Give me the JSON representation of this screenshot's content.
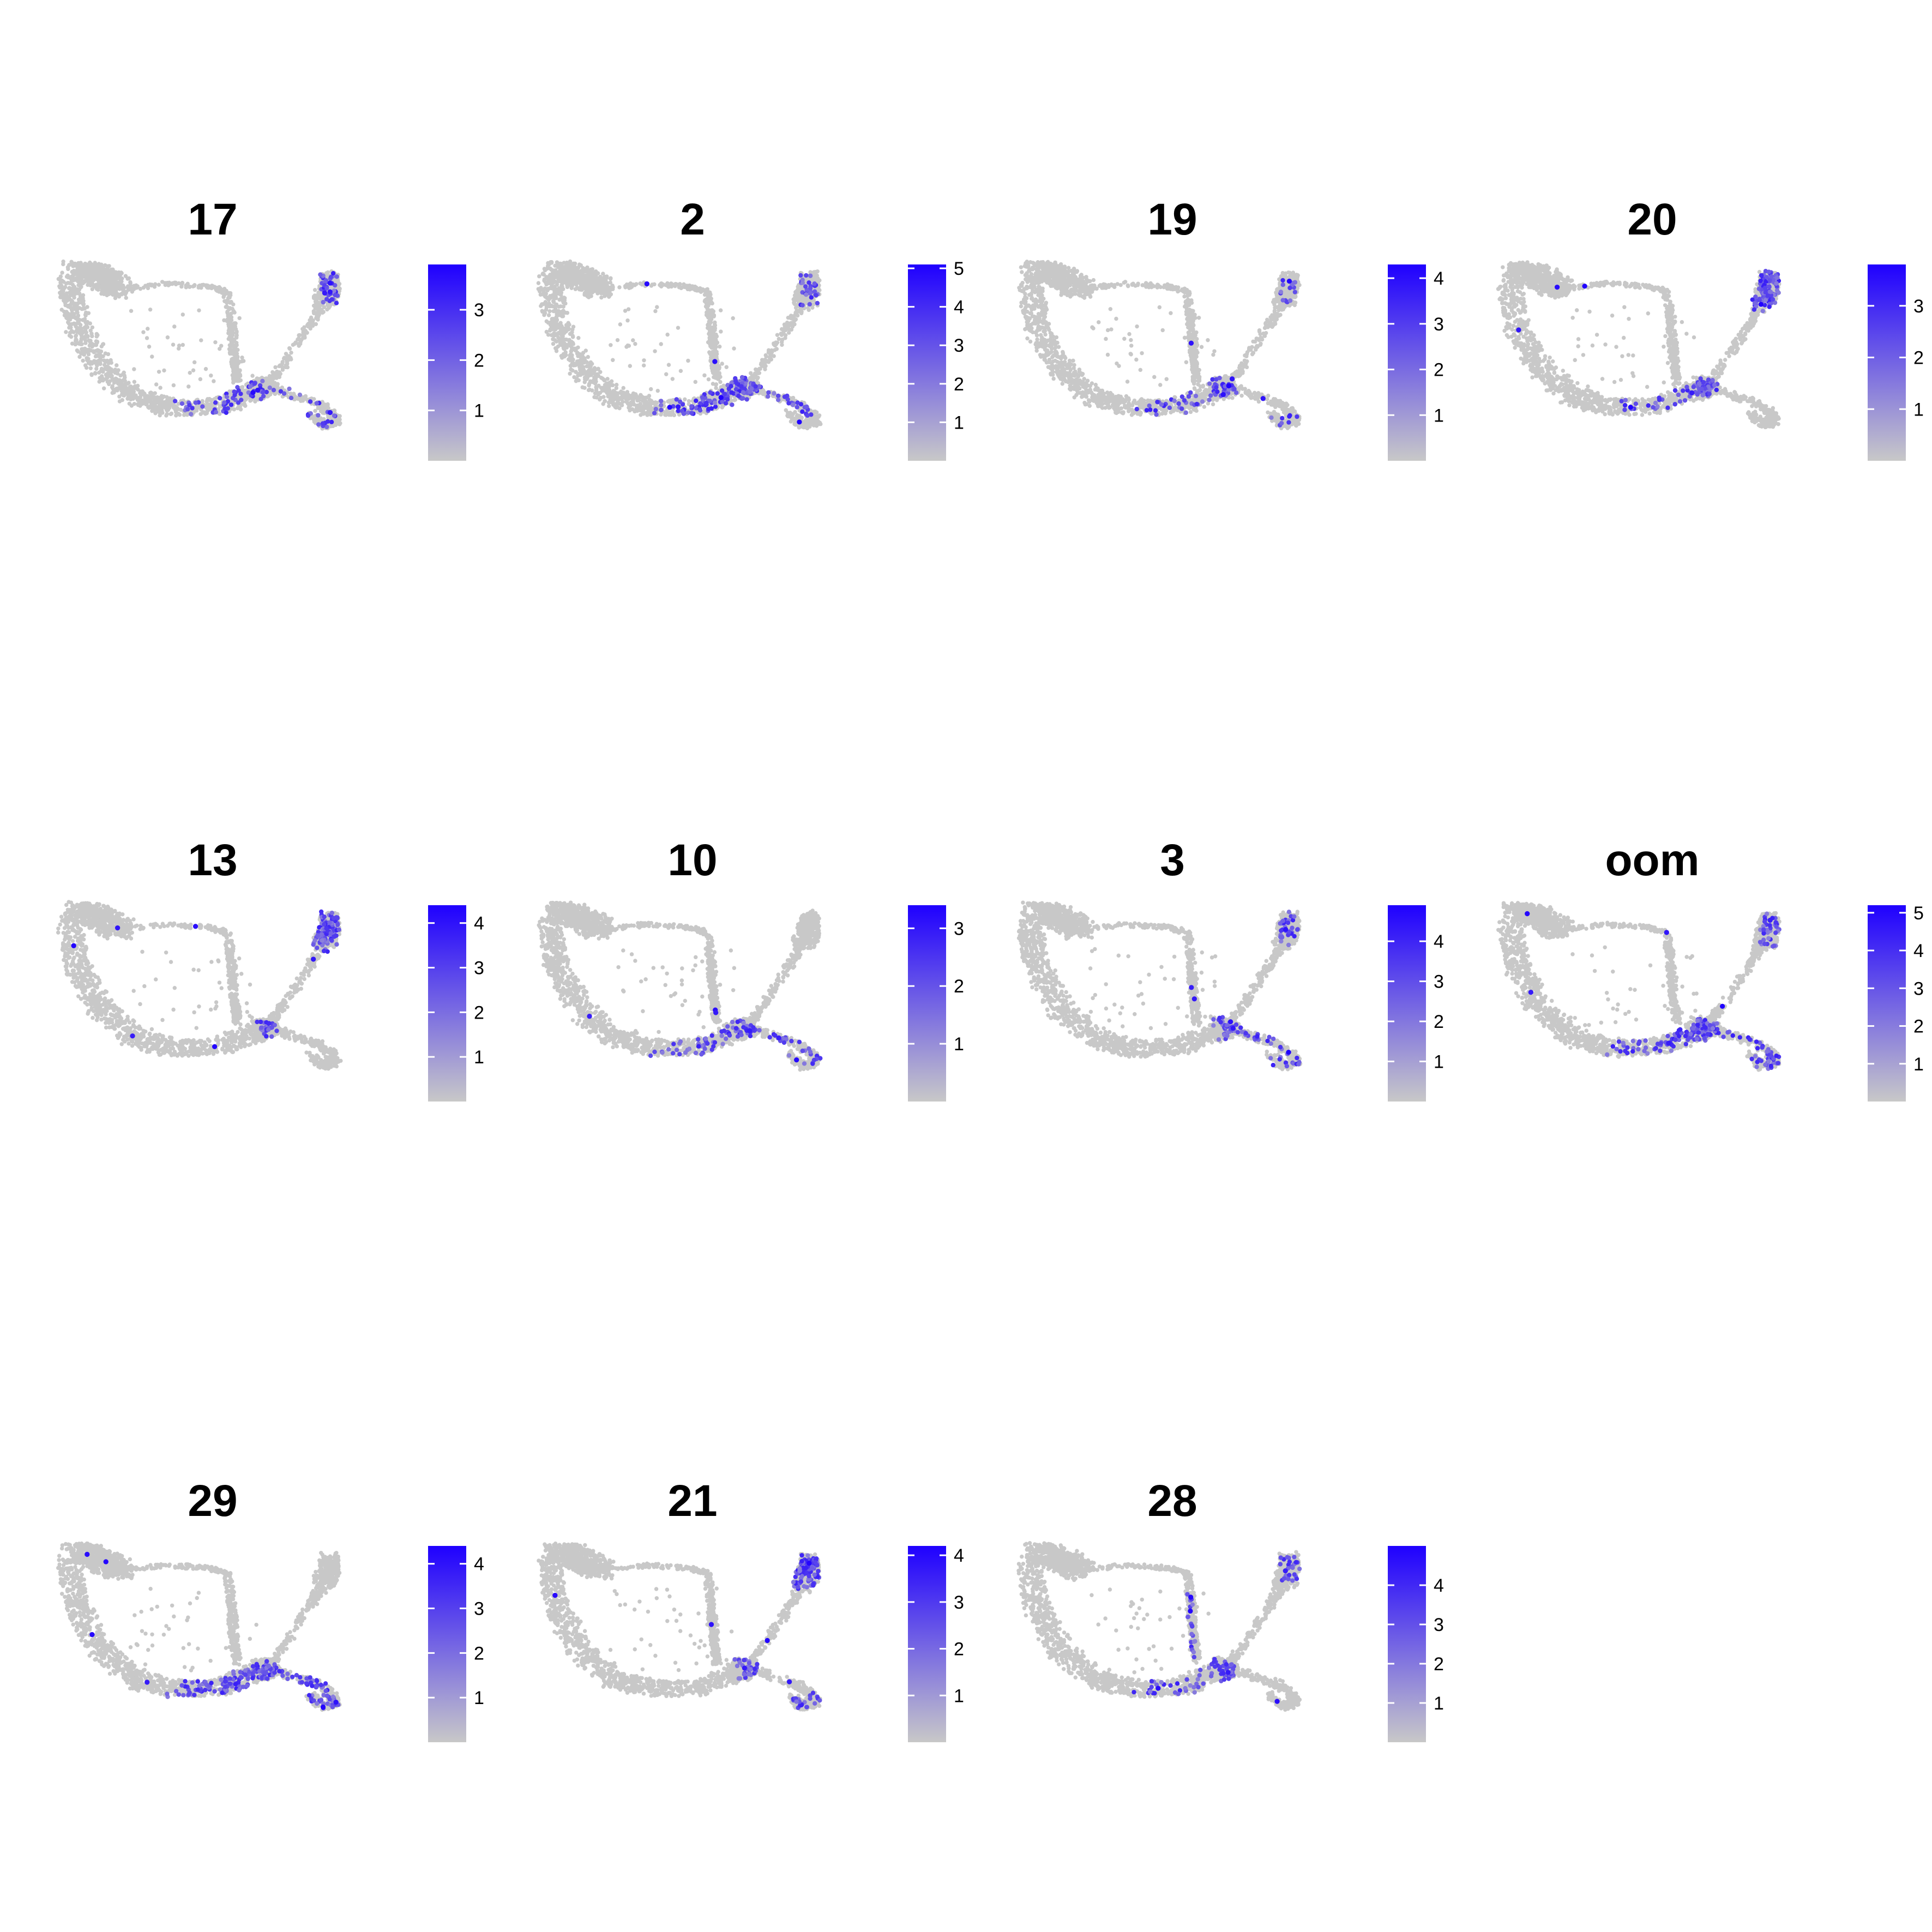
{
  "colors": {
    "low": "#C8C8C8",
    "high": "#1F00FF",
    "background": "#FFFFFF"
  },
  "chart_data": [
    {
      "type": "scatter",
      "title": "17",
      "colorbar": {
        "min": 0,
        "max": 3.9,
        "ticks": [
          1,
          2,
          3
        ]
      },
      "hotspots": [
        "t2:0.35",
        "b1:0.3",
        "b2:0.15",
        "p1:0.15"
      ],
      "seed": 17
    },
    {
      "type": "scatter",
      "title": "2",
      "colorbar": {
        "min": 0,
        "max": 5.1,
        "ticks": [
          1,
          2,
          3,
          4,
          5
        ]
      },
      "hotspots": [
        "j:0.55",
        "b1:0.5",
        "b2:0.35",
        "t2:0.3"
      ],
      "seed": 2
    },
    {
      "type": "scatter",
      "title": "19",
      "colorbar": {
        "min": 0,
        "max": 4.3,
        "ticks": [
          1,
          2,
          3,
          4
        ]
      },
      "hotspots": [
        "b1:0.25",
        "j:0.25",
        "t2:0.15",
        "p1:0.1"
      ],
      "seed": 19
    },
    {
      "type": "scatter",
      "title": "20",
      "colorbar": {
        "min": 0,
        "max": 3.8,
        "ticks": [
          1,
          2,
          3
        ]
      },
      "hotspots": [
        "t2:0.55",
        "t1:0.45",
        "j:0.5",
        "b1:0.2"
      ],
      "seed": 20
    },
    {
      "type": "scatter",
      "title": "13",
      "colorbar": {
        "min": 0,
        "max": 4.4,
        "ticks": [
          1,
          2,
          3,
          4
        ]
      },
      "hotspots": [
        "t1:0.55",
        "t2:0.5",
        "j:0.35"
      ],
      "seed": 13
    },
    {
      "type": "scatter",
      "title": "10",
      "colorbar": {
        "min": 0,
        "max": 3.4,
        "ticks": [
          1,
          2,
          3
        ]
      },
      "hotspots": [
        "b1:0.3",
        "b2:0.3",
        "p1:0.12",
        "j:0.15"
      ],
      "seed": 10
    },
    {
      "type": "scatter",
      "title": "3",
      "colorbar": {
        "min": 0,
        "max": 4.9,
        "ticks": [
          1,
          2,
          3,
          4
        ]
      },
      "hotspots": [
        "j:0.4",
        "t2:0.3",
        "b2:0.3",
        "p1:0.15"
      ],
      "seed": 3
    },
    {
      "type": "scatter",
      "title": "oom",
      "colorbar": {
        "min": 0,
        "max": 5.2,
        "ticks": [
          1,
          2,
          3,
          4,
          5
        ]
      },
      "hotspots": [
        "j:0.45",
        "b1:0.45",
        "t2:0.35",
        "p1:0.3",
        "b2:0.3"
      ],
      "seed": 31
    },
    {
      "type": "scatter",
      "title": "29",
      "colorbar": {
        "min": 0,
        "max": 4.4,
        "ticks": [
          1,
          2,
          3,
          4
        ]
      },
      "hotspots": [
        "b1:0.6",
        "b2:0.55",
        "p1:0.3",
        "j:0.25"
      ],
      "seed": 29
    },
    {
      "type": "scatter",
      "title": "21",
      "colorbar": {
        "min": 0,
        "max": 4.2,
        "ticks": [
          1,
          2,
          3,
          4
        ]
      },
      "hotspots": [
        "t2:0.45",
        "t1:0.5",
        "j:0.4",
        "p1:0.25"
      ],
      "seed": 21
    },
    {
      "type": "scatter",
      "title": "28",
      "colorbar": {
        "min": 0,
        "max": 5.0,
        "ticks": [
          1,
          2,
          3,
          4
        ]
      },
      "hotspots": [
        "p2:0.35",
        "j:0.35",
        "t2:0.25",
        "b1:0.2"
      ],
      "seed": 28
    }
  ]
}
